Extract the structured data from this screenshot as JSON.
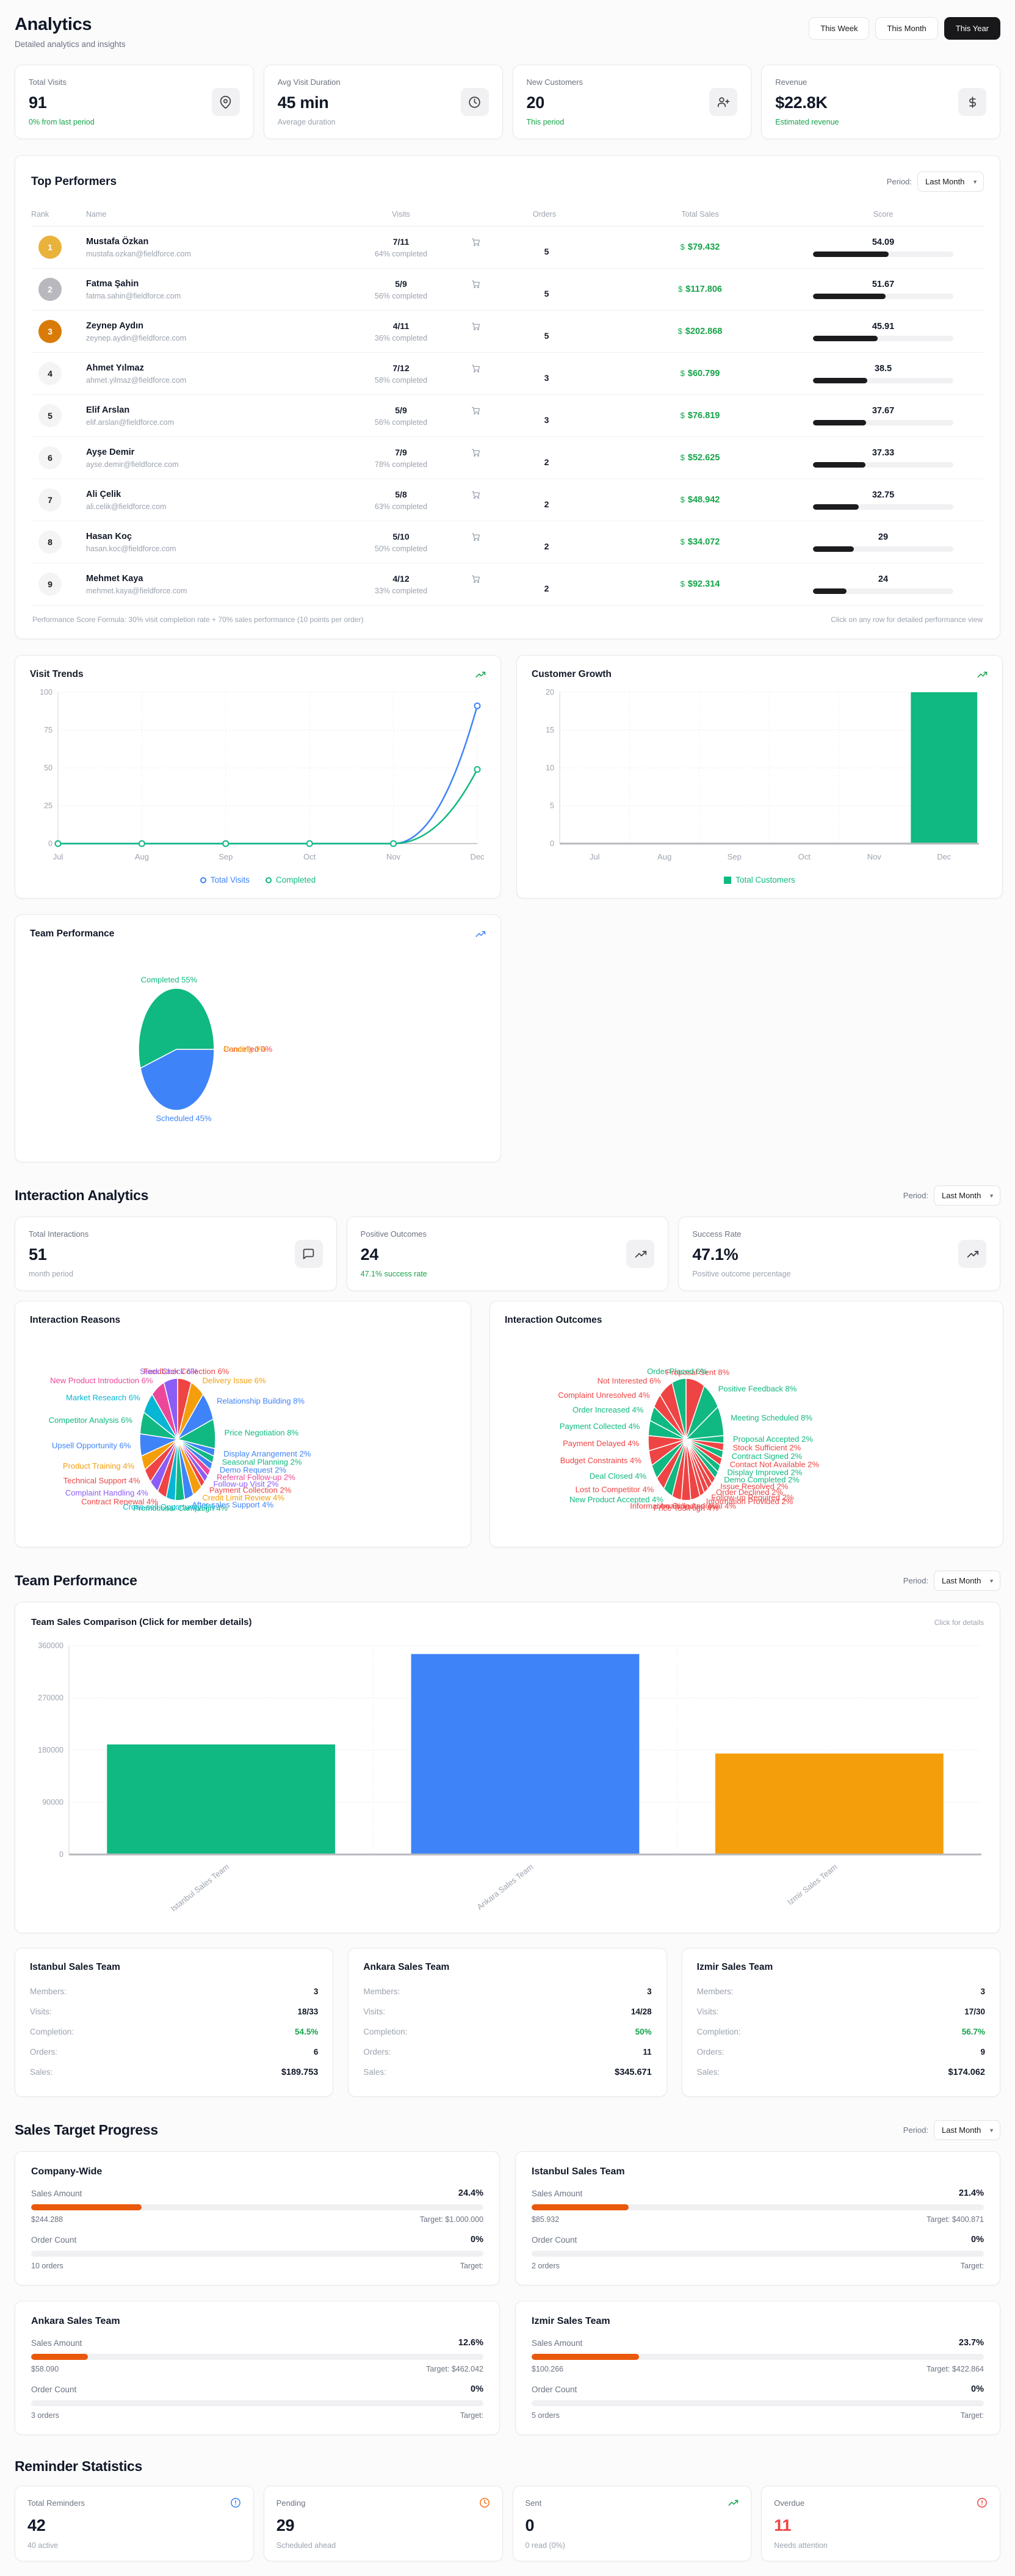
{
  "header": {
    "title": "Analytics",
    "subtitle": "Detailed analytics and insights",
    "range_buttons": [
      "This Week",
      "This Month",
      "This Year"
    ],
    "active_range": "This Year"
  },
  "periods": {
    "label": "Period:",
    "value": "Last Month"
  },
  "stats": [
    {
      "label": "Total Visits",
      "value": "91",
      "sub": "0% from last period",
      "sub_color": "green",
      "icon": "map-pin-icon"
    },
    {
      "label": "Avg Visit Duration",
      "value": "45 min",
      "sub": "Average duration",
      "sub_color": "grayc",
      "icon": "clock-icon"
    },
    {
      "label": "New Customers",
      "value": "20",
      "sub": "This period",
      "sub_color": "green",
      "icon": "user-plus-icon"
    },
    {
      "label": "Revenue",
      "value": "$22.8K",
      "sub": "Estimated revenue",
      "sub_color": "green",
      "icon": "dollar-icon"
    }
  ],
  "top_performers": {
    "title": "Top Performers",
    "columns": [
      "Rank",
      "Name",
      "Visits",
      "Orders",
      "Total Sales",
      "Score"
    ],
    "rows": [
      {
        "rank": 1,
        "badge": "gold",
        "name": "Mustafa Özkan",
        "email": "mustafa.ozkan@fieldforce.com",
        "visits": "7/11",
        "completion": "64% completed",
        "orders": "5",
        "sales": "$79.432",
        "score": 54.09,
        "score_text": "54.09"
      },
      {
        "rank": 2,
        "badge": "silver",
        "name": "Fatma Şahin",
        "email": "fatma.sahin@fieldforce.com",
        "visits": "5/9",
        "completion": "56% completed",
        "orders": "5",
        "sales": "$117.806",
        "score": 51.67,
        "score_text": "51.67"
      },
      {
        "rank": 3,
        "badge": "bronze",
        "name": "Zeynep Aydın",
        "email": "zeynep.aydin@fieldforce.com",
        "visits": "4/11",
        "completion": "36% completed",
        "orders": "5",
        "sales": "$202.868",
        "score": 45.91,
        "score_text": "45.91"
      },
      {
        "rank": 4,
        "badge": "plain",
        "name": "Ahmet Yılmaz",
        "email": "ahmet.yilmaz@fieldforce.com",
        "visits": "7/12",
        "completion": "58% completed",
        "orders": "3",
        "sales": "$60.799",
        "score": 38.5,
        "score_text": "38.5"
      },
      {
        "rank": 5,
        "badge": "plain",
        "name": "Elif Arslan",
        "email": "elif.arslan@fieldforce.com",
        "visits": "5/9",
        "completion": "56% completed",
        "orders": "3",
        "sales": "$76.819",
        "score": 37.67,
        "score_text": "37.67"
      },
      {
        "rank": 6,
        "badge": "plain",
        "name": "Ayşe Demir",
        "email": "ayse.demir@fieldforce.com",
        "visits": "7/9",
        "completion": "78% completed",
        "orders": "2",
        "sales": "$52.625",
        "score": 37.33,
        "score_text": "37.33"
      },
      {
        "rank": 7,
        "badge": "plain",
        "name": "Ali Çelik",
        "email": "ali.celik@fieldforce.com",
        "visits": "5/8",
        "completion": "63% completed",
        "orders": "2",
        "sales": "$48.942",
        "score": 32.75,
        "score_text": "32.75"
      },
      {
        "rank": 8,
        "badge": "plain",
        "name": "Hasan Koç",
        "email": "hasan.koc@fieldforce.com",
        "visits": "5/10",
        "completion": "50% completed",
        "orders": "2",
        "sales": "$34.072",
        "score": 29,
        "score_text": "29"
      },
      {
        "rank": 9,
        "badge": "plain",
        "name": "Mehmet Kaya",
        "email": "mehmet.kaya@fieldforce.com",
        "visits": "4/12",
        "completion": "33% completed",
        "orders": "2",
        "sales": "$92.314",
        "score": 24,
        "score_text": "24"
      }
    ],
    "footer_left": "Performance Score Formula: 30% visit completion rate + 70% sales performance (10 points per order)",
    "footer_right": "Click on any row for detailed performance view"
  },
  "interaction": {
    "heading": "Interaction Analytics",
    "stats": [
      {
        "label": "Total Interactions",
        "value": "51",
        "sub": "month period",
        "sub_color": "grayc",
        "icon": "chat-icon"
      },
      {
        "label": "Positive Outcomes",
        "value": "24",
        "sub": "47.1% success rate",
        "sub_color": "green",
        "icon": "trend-up-icon"
      },
      {
        "label": "Success Rate",
        "value": "47.1%",
        "sub": "Positive outcome percentage",
        "sub_color": "grayc",
        "icon": "trend-up-icon"
      }
    ]
  },
  "team_section": {
    "heading": "Team Performance",
    "hint": "Click for details",
    "teams": [
      {
        "name": "Istanbul Sales Team",
        "rows": [
          {
            "label": "Members:",
            "value": "3"
          },
          {
            "label": "Visits:",
            "value": "18/33"
          },
          {
            "label": "Completion:",
            "value": "54.5%",
            "accent": "green"
          },
          {
            "label": "Orders:",
            "value": "6"
          },
          {
            "label": "Sales:",
            "value": "$189.753",
            "accent": "big"
          }
        ]
      },
      {
        "name": "Ankara Sales Team",
        "rows": [
          {
            "label": "Members:",
            "value": "3"
          },
          {
            "label": "Visits:",
            "value": "14/28"
          },
          {
            "label": "Completion:",
            "value": "50%",
            "accent": "green"
          },
          {
            "label": "Orders:",
            "value": "11"
          },
          {
            "label": "Sales:",
            "value": "$345.671",
            "accent": "big"
          }
        ]
      },
      {
        "name": "Izmir Sales Team",
        "rows": [
          {
            "label": "Members:",
            "value": "3"
          },
          {
            "label": "Visits:",
            "value": "17/30"
          },
          {
            "label": "Completion:",
            "value": "56.7%",
            "accent": "green"
          },
          {
            "label": "Orders:",
            "value": "9"
          },
          {
            "label": "Sales:",
            "value": "$174.062",
            "accent": "big"
          }
        ]
      }
    ]
  },
  "sales_target": {
    "heading": "Sales Target Progress",
    "cards": [
      {
        "title": "Company-Wide",
        "sales_label": "Sales Amount",
        "sales_pct": "24.4%",
        "sales_pct_num": 24.4,
        "current": "$244.288",
        "target": "Target: $1.000.000",
        "order_label": "Order Count",
        "order_pct": "0%",
        "order_pct_num": 0,
        "orders": "10 orders",
        "order_target": "Target:"
      },
      {
        "title": "Istanbul Sales Team",
        "sales_label": "Sales Amount",
        "sales_pct": "21.4%",
        "sales_pct_num": 21.4,
        "current": "$85.932",
        "target": "Target: $400.871",
        "order_label": "Order Count",
        "order_pct": "0%",
        "order_pct_num": 0,
        "orders": "2 orders",
        "order_target": "Target:"
      },
      {
        "title": "Ankara Sales Team",
        "sales_label": "Sales Amount",
        "sales_pct": "12.6%",
        "sales_pct_num": 12.6,
        "current": "$58.090",
        "target": "Target: $462.042",
        "order_label": "Order Count",
        "order_pct": "0%",
        "order_pct_num": 0,
        "orders": "3 orders",
        "order_target": "Target:"
      },
      {
        "title": "Izmir Sales Team",
        "sales_label": "Sales Amount",
        "sales_pct": "23.7%",
        "sales_pct_num": 23.7,
        "current": "$100.266",
        "target": "Target: $422.864",
        "order_label": "Order Count",
        "order_pct": "0%",
        "order_pct_num": 0,
        "orders": "5 orders",
        "order_target": "Target:"
      }
    ]
  },
  "reminders": {
    "heading": "Reminder Statistics",
    "cards": [
      {
        "label": "Total Reminders",
        "value": "42",
        "sub": "40 active",
        "icon": "alert-icon",
        "icon_color": "#3b82f6"
      },
      {
        "label": "Pending",
        "value": "29",
        "sub": "Scheduled ahead",
        "icon": "clock-icon",
        "icon_color": "#f97316"
      },
      {
        "label": "Sent",
        "value": "0",
        "sub": "0 read (0%)",
        "icon": "trend-up-icon",
        "icon_color": "#16a34a"
      },
      {
        "label": "Overdue",
        "value": "11",
        "sub": "Needs attention",
        "icon": "alert-icon",
        "icon_color": "#ef4444",
        "value_color": "#ef4444"
      }
    ]
  },
  "chart_data": [
    {
      "id": "visit_trends",
      "type": "line",
      "title": "Visit Trends",
      "x": [
        "Jul",
        "Aug",
        "Sep",
        "Oct",
        "Nov",
        "Dec"
      ],
      "ylim": [
        0,
        100
      ],
      "yticks": [
        0,
        25,
        50,
        75,
        100
      ],
      "grid": true,
      "legend": "bottom",
      "series": [
        {
          "name": "Total Visits",
          "color": "#3f83f8",
          "values": [
            0,
            0,
            0,
            0,
            0,
            91
          ]
        },
        {
          "name": "Completed",
          "color": "#10b981",
          "values": [
            0,
            0,
            0,
            0,
            0,
            49
          ]
        }
      ]
    },
    {
      "id": "customer_growth",
      "type": "bar",
      "title": "Customer Growth",
      "x": [
        "Jul",
        "Aug",
        "Sep",
        "Oct",
        "Nov",
        "Dec"
      ],
      "ylim": [
        0,
        20
      ],
      "yticks": [
        0,
        5,
        10,
        15,
        20
      ],
      "grid": true,
      "legend": "bottom",
      "series": [
        {
          "name": "Total Customers",
          "color": "#10b981",
          "values": [
            0,
            0,
            0,
            0,
            0,
            20
          ]
        }
      ]
    },
    {
      "id": "team_status_pie",
      "type": "pie",
      "title": "Team Performance",
      "rotation": 90,
      "slices": [
        {
          "label": "Cancelled",
          "pct": 0,
          "color": "#ef4444"
        },
        {
          "label": "Pending",
          "pct": 0,
          "color": "#f59e0b"
        },
        {
          "label": "Scheduled",
          "pct": 45,
          "color": "#3f83f8"
        },
        {
          "label": "Completed",
          "pct": 55,
          "color": "#10b981"
        }
      ]
    },
    {
      "id": "interaction_reasons",
      "type": "pie",
      "title": "Interaction Reasons",
      "rotation": 0,
      "slices": [
        {
          "label": "Feedback Collection",
          "pct": 6,
          "color": "#ef4444"
        },
        {
          "label": "Delivery Issue",
          "pct": 6,
          "color": "#f59e0b"
        },
        {
          "label": "Relationship Building",
          "pct": 8,
          "color": "#3f83f8"
        },
        {
          "label": "Price Negotiation",
          "pct": 8,
          "color": "#10b981"
        },
        {
          "label": "Display Arrangement",
          "pct": 2,
          "color": "#3f83f8"
        },
        {
          "label": "Seasonal Planning",
          "pct": 2,
          "color": "#10b981"
        },
        {
          "label": "Demo Request",
          "pct": 2,
          "color": "#3f83f8"
        },
        {
          "label": "Referral Follow-up",
          "pct": 2,
          "color": "#ec4899"
        },
        {
          "label": "Follow-up Visit",
          "pct": 2,
          "color": "#8b5cf6"
        },
        {
          "label": "Payment Collection",
          "pct": 2,
          "color": "#ef4444"
        },
        {
          "label": "Credit Limit Review",
          "pct": 4,
          "color": "#f59e0b"
        },
        {
          "label": "After-sales Support",
          "pct": 4,
          "color": "#3f83f8"
        },
        {
          "label": "Promotional Campaign",
          "pct": 4,
          "color": "#10b981"
        },
        {
          "label": "Cross-sell Opportunity",
          "pct": 4,
          "color": "#06b6d4"
        },
        {
          "label": "Contract Renewal",
          "pct": 4,
          "color": "#ef4444"
        },
        {
          "label": "Complaint Handling",
          "pct": 4,
          "color": "#8b5cf6"
        },
        {
          "label": "Technical Support",
          "pct": 4,
          "color": "#ef4444"
        },
        {
          "label": "Product Training",
          "pct": 4,
          "color": "#f59e0b"
        },
        {
          "label": "Upsell Opportunity",
          "pct": 6,
          "color": "#3f83f8"
        },
        {
          "label": "Competitor Analysis",
          "pct": 6,
          "color": "#10b981"
        },
        {
          "label": "Market Research",
          "pct": 6,
          "color": "#06b6d4"
        },
        {
          "label": "New Product Introduction",
          "pct": 6,
          "color": "#ec4899"
        },
        {
          "label": "Stock Check",
          "pct": 6,
          "color": "#8b5cf6"
        }
      ]
    },
    {
      "id": "interaction_outcomes",
      "type": "pie",
      "title": "Interaction Outcomes",
      "rotation": 0,
      "slices": [
        {
          "label": "Proposal Sent",
          "pct": 8,
          "color": "#ef4444"
        },
        {
          "label": "Positive Feedback",
          "pct": 8,
          "color": "#10b981"
        },
        {
          "label": "Meeting Scheduled",
          "pct": 8,
          "color": "#10b981"
        },
        {
          "label": "Proposal Accepted",
          "pct": 2,
          "color": "#10b981"
        },
        {
          "label": "Stock Sufficient",
          "pct": 2,
          "color": "#ef4444"
        },
        {
          "label": "Contract Signed",
          "pct": 2,
          "color": "#10b981"
        },
        {
          "label": "Contact Not Available",
          "pct": 2,
          "color": "#ef4444"
        },
        {
          "label": "Display Improved",
          "pct": 2,
          "color": "#10b981"
        },
        {
          "label": "Demo Completed",
          "pct": 2,
          "color": "#10b981"
        },
        {
          "label": "Issue Resolved",
          "pct": 2,
          "color": "#ef4444"
        },
        {
          "label": "Order Declined",
          "pct": 2,
          "color": "#ef4444"
        },
        {
          "label": "Follow-up Required",
          "pct": 2,
          "color": "#ef4444"
        },
        {
          "label": "Information Provided",
          "pct": 2,
          "color": "#ef4444"
        },
        {
          "label": "Awaiting Approval",
          "pct": 4,
          "color": "#ef4444"
        },
        {
          "label": "Price Too High",
          "pct": 4,
          "color": "#ef4444"
        },
        {
          "label": "Information Collected",
          "pct": 4,
          "color": "#ef4444"
        },
        {
          "label": "New Product Accepted",
          "pct": 4,
          "color": "#10b981"
        },
        {
          "label": "Lost to Competitor",
          "pct": 4,
          "color": "#ef4444"
        },
        {
          "label": "Deal Closed",
          "pct": 4,
          "color": "#10b981"
        },
        {
          "label": "Budget Constraints",
          "pct": 4,
          "color": "#ef4444"
        },
        {
          "label": "Payment Delayed",
          "pct": 4,
          "color": "#ef4444"
        },
        {
          "label": "Payment Collected",
          "pct": 4,
          "color": "#10b981"
        },
        {
          "label": "Order Increased",
          "pct": 4,
          "color": "#10b981"
        },
        {
          "label": "Complaint Unresolved",
          "pct": 4,
          "color": "#ef4444"
        },
        {
          "label": "Not Interested",
          "pct": 6,
          "color": "#ef4444"
        },
        {
          "label": "Order Placed",
          "pct": 6,
          "color": "#10b981"
        }
      ]
    },
    {
      "id": "team_sales",
      "type": "bar",
      "title": "Team Sales Comparison (Click for member details)",
      "x": [
        "Istanbul Sales Team",
        "Ankara Sales Team",
        "Izmir Sales Team"
      ],
      "ylim": [
        0,
        360000
      ],
      "yticks": [
        0,
        90000,
        180000,
        270000,
        360000
      ],
      "grid": true,
      "rotate_x": true,
      "bar_colors": [
        "#10b981",
        "#3f83f8",
        "#f59e0b"
      ],
      "series": [
        {
          "name": "Sales",
          "color": "#3f83f8",
          "values": [
            189753,
            345671,
            174062
          ]
        }
      ]
    }
  ]
}
